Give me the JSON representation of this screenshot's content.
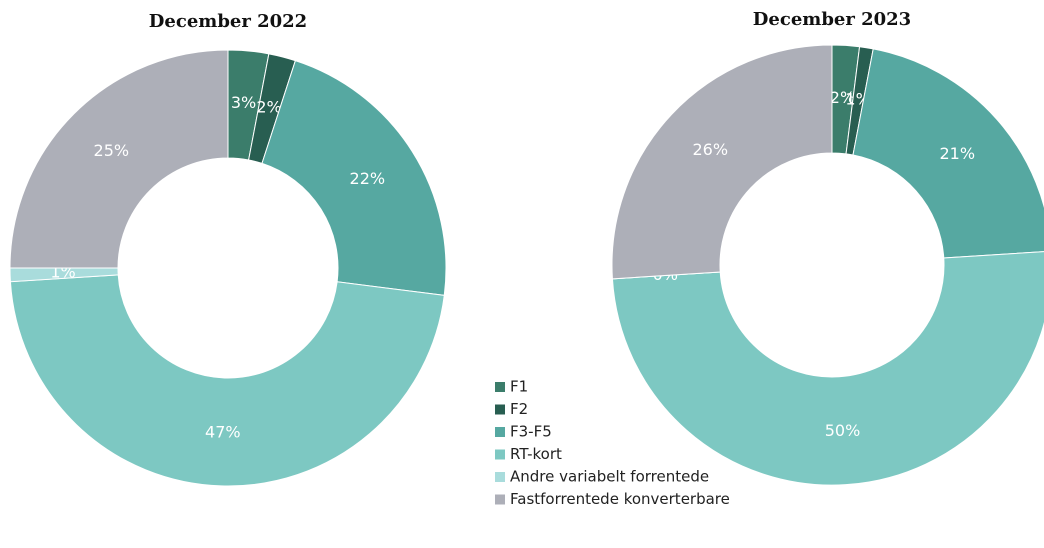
{
  "chart_data": [
    {
      "type": "donut",
      "title": "December 2022",
      "categories": [
        "F1",
        "F2",
        "F3-F5",
        "RT-kort",
        "Andre variabelt forrentede",
        "Fastforrentede konverterbare"
      ],
      "values": [
        3,
        2,
        22,
        47,
        1,
        25
      ],
      "value_labels": [
        "3%",
        "2%",
        "22%",
        "47%",
        "1%",
        "25%"
      ],
      "colors": [
        "#3b7d6b",
        "#285e51",
        "#56a8a1",
        "#7dc8c2",
        "#a9dcdc",
        "#adafb8"
      ]
    },
    {
      "type": "donut",
      "title": "December 2023",
      "categories": [
        "F1",
        "F2",
        "F3-F5",
        "RT-kort",
        "Andre variabelt forrentede",
        "Fastforrentede konverterbare"
      ],
      "values": [
        2,
        1,
        21,
        50,
        0,
        26
      ],
      "value_labels": [
        "2%",
        "1%",
        "21%",
        "50%",
        "0%",
        "26%"
      ],
      "colors": [
        "#3b7d6b",
        "#285e51",
        "#56a8a1",
        "#7dc8c2",
        "#a9dcdc",
        "#adafb8"
      ]
    }
  ]
}
